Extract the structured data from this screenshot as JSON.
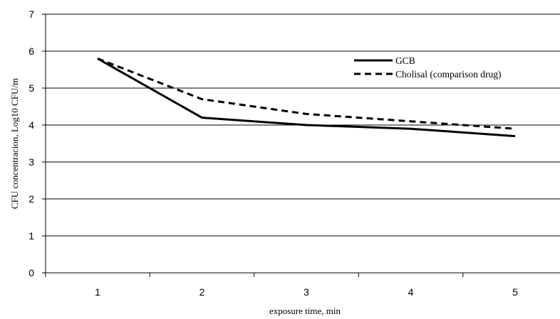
{
  "chart_data": {
    "type": "line",
    "title": "",
    "xlabel": "exposure time, min",
    "ylabel": "CFU concentracion, Log10 CFU/m",
    "categories": [
      "1",
      "2",
      "3",
      "4",
      "5"
    ],
    "ylim": [
      0,
      7
    ],
    "yticks": [
      "0",
      "1",
      "2",
      "3",
      "4",
      "5",
      "6",
      "7"
    ],
    "grid": "horizontal",
    "legend_position": "top-right",
    "series": [
      {
        "name": "GCB",
        "values": [
          5.8,
          4.2,
          4.0,
          3.9,
          3.7
        ],
        "style": "solid",
        "color": "#000000"
      },
      {
        "name": "Cholisal (comparison drug)",
        "values": [
          5.8,
          4.7,
          4.3,
          4.1,
          3.9
        ],
        "style": "dashed",
        "color": "#000000"
      }
    ]
  }
}
